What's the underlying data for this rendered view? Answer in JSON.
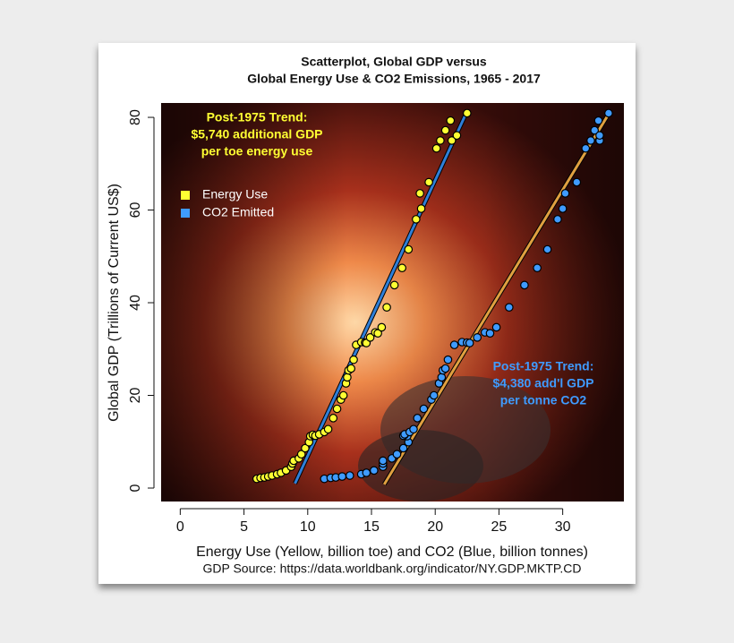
{
  "chart_data": {
    "type": "scatter",
    "title": "Scatterplot, Global GDP versus",
    "subtitle": "Global Energy Use & CO2 Emissions, 1965 - 2017",
    "x_label": "Energy Use (Yellow, billion toe) and CO2 (Blue, billion tonnes)",
    "y_label": "Global GDP (Trillions of Current US$)",
    "source": "GDP Source: https://data.worldbank.org/indicator/NY.GDP.MKTP.CD",
    "annotations": [
      {
        "color": "#ffff33",
        "lines": [
          "Post-1975 Trend:",
          "$5,740 additional GDP",
          "per toe energy use"
        ]
      },
      {
        "color": "#3f9bff",
        "lines": [
          "Post-1975 Trend:",
          "$4,380 add'l GDP",
          "per tonne CO2"
        ]
      }
    ],
    "legend": "top-left",
    "xlim": [
      -1.5,
      34.8
    ],
    "ylim": [
      -2.9,
      83.1
    ],
    "xticks": [
      0,
      5,
      10,
      15,
      20,
      25,
      30
    ],
    "yticks": [
      0,
      20,
      40,
      60,
      80
    ],
    "series": [
      {
        "name": "Energy Use",
        "color": "#ffff33",
        "x": [
          6.0,
          6.3,
          6.6,
          6.9,
          7.2,
          7.6,
          7.9,
          8.3,
          8.7,
          8.8,
          8.9,
          9.3,
          9.5,
          9.8,
          10.1,
          10.2,
          10.4,
          10.6,
          10.9,
          11.3,
          11.6,
          12.0,
          12.3,
          12.6,
          12.8,
          13.0,
          13.1,
          13.2,
          13.4,
          13.6,
          13.8,
          14.2,
          14.5,
          14.6,
          14.9,
          15.3,
          15.5,
          15.8,
          16.2,
          16.8,
          17.4,
          17.9,
          18.5,
          18.8,
          18.9,
          19.5,
          20.1,
          20.4,
          20.8,
          21.2,
          21.3,
          21.7,
          22.5
        ],
        "values": [
          2.0,
          2.2,
          2.3,
          2.5,
          2.7,
          3.0,
          3.3,
          3.8,
          4.6,
          5.3,
          5.9,
          6.4,
          7.3,
          8.6,
          9.9,
          11.2,
          11.5,
          11.3,
          11.6,
          12.1,
          12.7,
          15.1,
          17.1,
          19.1,
          20.0,
          22.6,
          23.9,
          25.4,
          25.8,
          27.7,
          30.9,
          31.5,
          31.4,
          31.3,
          32.5,
          33.6,
          33.4,
          34.7,
          39.0,
          43.8,
          47.5,
          51.5,
          58.0,
          63.6,
          60.3,
          66.0,
          73.3,
          75.0,
          77.2,
          79.3,
          75.0,
          76.1,
          80.9
        ]
      },
      {
        "name": "CO2 Emitted",
        "color": "#3f9bff",
        "x": [
          11.3,
          11.8,
          12.2,
          12.7,
          13.3,
          14.2,
          14.6,
          15.2,
          15.9,
          15.9,
          15.9,
          16.6,
          17.0,
          17.5,
          17.9,
          17.8,
          17.6,
          17.5,
          17.6,
          18.0,
          18.3,
          18.6,
          19.1,
          19.7,
          19.9,
          20.3,
          20.5,
          20.6,
          20.8,
          21.0,
          21.5,
          22.1,
          22.5,
          22.7,
          23.3,
          23.9,
          24.3,
          24.8,
          25.8,
          27.0,
          28.0,
          28.8,
          29.6,
          30.2,
          30.0,
          31.1,
          31.8,
          32.2,
          32.5,
          32.8,
          32.9,
          32.9,
          33.6
        ],
        "values": [
          2.0,
          2.2,
          2.3,
          2.5,
          2.7,
          3.0,
          3.3,
          3.8,
          4.6,
          5.3,
          5.9,
          6.4,
          7.3,
          8.6,
          9.9,
          11.2,
          11.5,
          11.3,
          11.6,
          12.1,
          12.7,
          15.1,
          17.1,
          19.1,
          20.0,
          22.6,
          23.9,
          25.4,
          25.8,
          27.7,
          30.9,
          31.5,
          31.4,
          31.3,
          32.5,
          33.6,
          33.4,
          34.7,
          39.0,
          43.8,
          47.5,
          51.5,
          58.0,
          63.6,
          60.3,
          66.0,
          73.3,
          75.0,
          77.2,
          79.3,
          75.0,
          76.1,
          80.9
        ]
      }
    ],
    "trend_lines": [
      {
        "color": "#2f7fd8",
        "x": [
          9.0,
          22.5
        ],
        "values": [
          1.0,
          81.3
        ]
      },
      {
        "color": "#e0a040",
        "x": [
          16.0,
          33.6
        ],
        "values": [
          0.8,
          80.7
        ]
      }
    ]
  }
}
